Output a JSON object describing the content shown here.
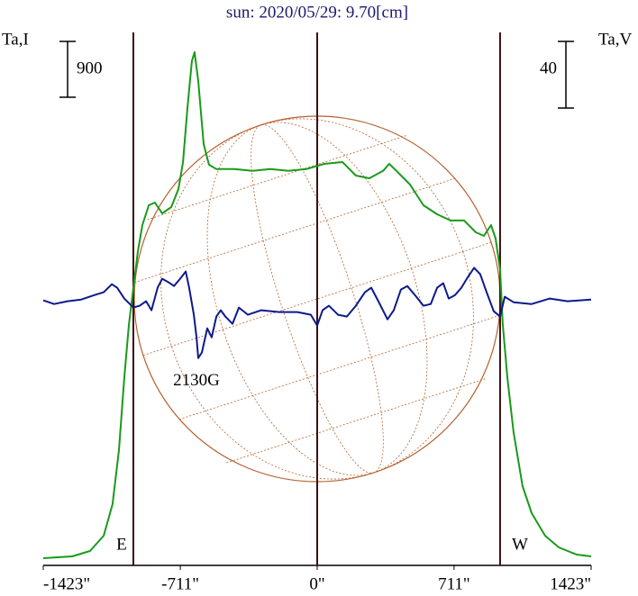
{
  "chart_data": {
    "type": "line",
    "title": "sun: 2020/05/29: 9.70[cm]",
    "y_label": "Ta,I",
    "y2_label": "Ta,V",
    "xlim": [
      -1423,
      1423
    ],
    "xticks": [
      {
        "value": -1423,
        "label": "-1423\""
      },
      {
        "value": -711,
        "label": "-711\""
      },
      {
        "value": 0,
        "label": "0\""
      },
      {
        "value": 711,
        "label": "711\""
      },
      {
        "value": 1423,
        "label": "1423\""
      }
    ],
    "ylim": [
      0,
      8680
    ],
    "y2lim": [
      -159,
      164
    ],
    "scale_bars": [
      {
        "value": 900,
        "axis": "y"
      },
      {
        "value": 40,
        "axis": "y2"
      }
    ],
    "limbs": [
      {
        "label": "E",
        "x": -955
      },
      {
        "label": "W",
        "x": 950
      }
    ],
    "annotations": [
      {
        "text": "2130G",
        "x": -627,
        "y": -48.6,
        "axis": "y2"
      }
    ],
    "series": [
      {
        "name": "I",
        "color": "#1a9a1a",
        "axis": "y",
        "x": [
          -1423,
          -1273,
          -1180,
          -1109,
          -1063,
          -1030,
          -1002,
          -978,
          -955,
          -932,
          -908,
          -875,
          -843,
          -805,
          -758,
          -721,
          -697,
          -674,
          -651,
          -637,
          -618,
          -590,
          -562,
          -524,
          -431,
          -337,
          -243,
          -150,
          -56,
          37,
          131,
          201,
          271,
          342,
          374,
          412,
          482,
          552,
          623,
          693,
          763,
          824,
          866,
          903,
          927,
          950,
          964,
          988,
          1020,
          1067,
          1114,
          1184,
          1255,
          1348,
          1423
        ],
        "values": [
          116,
          145,
          232,
          479,
          987,
          1858,
          3019,
          3890,
          4471,
          5052,
          5487,
          5806,
          5850,
          5676,
          5777,
          6068,
          6503,
          7374,
          8129,
          8274,
          7810,
          6793,
          6460,
          6390,
          6390,
          6361,
          6390,
          6361,
          6390,
          6474,
          6503,
          6285,
          6242,
          6361,
          6474,
          6361,
          6140,
          5806,
          5661,
          5560,
          5560,
          5371,
          5313,
          5487,
          5269,
          4761,
          3890,
          3019,
          2148,
          1277,
          842,
          479,
          290,
          174,
          145
        ]
      },
      {
        "name": "V",
        "color": "#0c1a8c",
        "axis": "y2",
        "x": [
          -1423,
          -1367,
          -1297,
          -1226,
          -1156,
          -1109,
          -1067,
          -1039,
          -1002,
          -955,
          -922,
          -889,
          -861,
          -829,
          -805,
          -772,
          -744,
          -712,
          -683,
          -665,
          -641,
          -627,
          -618,
          -599,
          -571,
          -548,
          -524,
          -501,
          -477,
          -440,
          -407,
          -360,
          -290,
          -197,
          -103,
          -33,
          0,
          28,
          61,
          108,
          154,
          201,
          248,
          281,
          318,
          365,
          398,
          435,
          468,
          515,
          552,
          590,
          623,
          655,
          683,
          716,
          749,
          777,
          815,
          847,
          880,
          917,
          950,
          974,
          1020,
          1114,
          1208,
          1301,
          1423
        ],
        "values": [
          0,
          -2.2,
          -0.5,
          0.5,
          3.2,
          4.9,
          9.7,
          7.6,
          1.1,
          -4.3,
          -3.2,
          -0.5,
          -5.9,
          7.6,
          13,
          10.8,
          8.6,
          13,
          17.3,
          7.6,
          -8.6,
          -22.2,
          -34.6,
          -31.3,
          -16.8,
          -22.2,
          -9.7,
          -5.9,
          -9.7,
          -14.1,
          -4.3,
          -8.6,
          -5.9,
          -7,
          -7,
          -8.6,
          -15.1,
          -5.9,
          -3.2,
          -8.6,
          -9.7,
          -3.2,
          4.9,
          7.6,
          -0.5,
          -11.4,
          -5.9,
          6.5,
          8.6,
          2.2,
          -3.2,
          -2.2,
          7.6,
          10.3,
          1.1,
          3.2,
          7.6,
          13,
          19.5,
          15.7,
          4.9,
          -6.5,
          -9.7,
          2.2,
          -1.1,
          -2.2,
          1.1,
          -0.5,
          0.5
        ]
      }
    ]
  }
}
